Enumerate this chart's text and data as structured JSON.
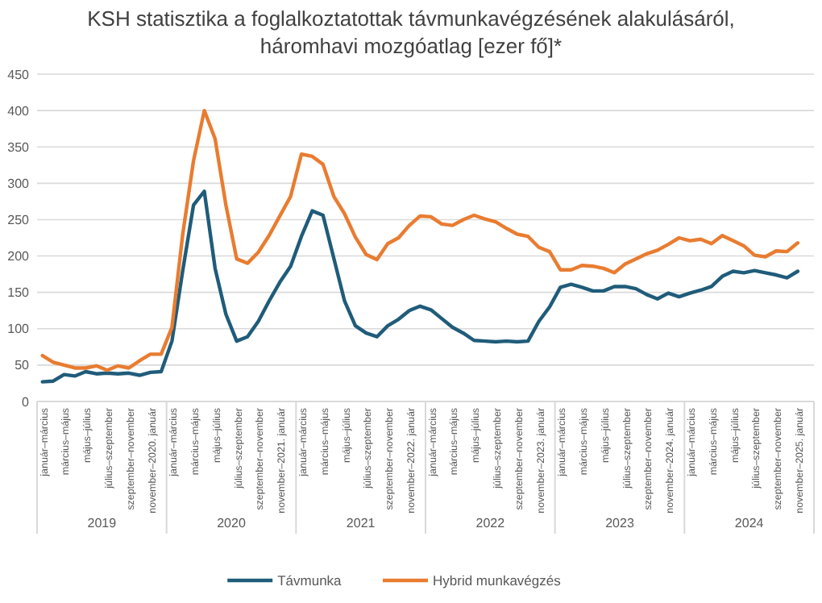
{
  "chart_data": {
    "type": "line",
    "title": "KSH statisztika a foglalkoztatottak távmunkavégzésének alakulásáról, háromhavi mozgóatlag [ezer fő]*",
    "categories": [
      "január–március",
      null,
      "március–május",
      null,
      "május–július",
      null,
      "július–szeptember",
      null,
      "szeptember–november",
      null,
      "november–2020. január",
      null,
      "január–március",
      null,
      "március–május",
      null,
      "május–július",
      null,
      "július–szeptember",
      null,
      "szeptember–november",
      null,
      "november–2021. január",
      null,
      "január–március",
      null,
      "március–május",
      null,
      "május–július",
      null,
      "július–szeptember",
      null,
      "szeptember–november",
      null,
      "november–2022. január",
      null,
      "január–március",
      null,
      "március–május",
      null,
      "május–július",
      null,
      "július–szeptember",
      null,
      "szeptember–november",
      null,
      "november–2023. január",
      null,
      "január–március",
      null,
      "március–május",
      null,
      "május–július",
      null,
      "július–szeptember",
      null,
      "szeptember–november",
      null,
      "november–2024. január",
      null,
      "január–március",
      null,
      "március–május",
      null,
      "május–július",
      null,
      "július–szeptember",
      null,
      "szeptember–november",
      null,
      "november–2025. január"
    ],
    "series": [
      {
        "name": "Távmunka",
        "color": "#1f5c7a",
        "values": [
          27,
          28,
          37,
          35,
          41,
          38,
          39,
          38,
          39,
          36,
          40,
          41,
          83,
          180,
          270,
          289,
          183,
          120,
          83,
          89,
          110,
          138,
          164,
          186,
          227,
          262,
          256,
          197,
          138,
          104,
          94,
          89,
          104,
          113,
          125,
          131,
          126,
          114,
          102,
          94,
          84,
          83,
          82,
          83,
          82,
          83,
          110,
          130,
          157,
          161,
          157,
          152,
          152,
          158,
          158,
          155,
          147,
          141,
          149,
          144,
          149,
          153,
          158,
          172,
          179,
          177,
          180,
          177,
          174,
          170,
          179
        ]
      },
      {
        "name": "Hybrid munkavégzés",
        "color": "#e97c30",
        "values": [
          63,
          54,
          50,
          46,
          46,
          49,
          43,
          49,
          46,
          56,
          65,
          65,
          102,
          230,
          331,
          400,
          361,
          270,
          196,
          190,
          205,
          228,
          255,
          282,
          340,
          337,
          326,
          282,
          258,
          226,
          202,
          195,
          217,
          225,
          242,
          255,
          254,
          244,
          242,
          250,
          256,
          251,
          247,
          238,
          230,
          227,
          212,
          206,
          181,
          181,
          187,
          186,
          183,
          177,
          189,
          196,
          203,
          208,
          216,
          225,
          221,
          223,
          217,
          228,
          221,
          214,
          201,
          199,
          207,
          206,
          218
        ]
      }
    ],
    "ylim": [
      0,
      450
    ],
    "yticks": [
      0,
      50,
      100,
      150,
      200,
      250,
      300,
      350,
      400,
      450
    ],
    "grid": "y",
    "legend": "bottom",
    "marker": "none",
    "line_style": "solid",
    "annotations": [
      "2019",
      "2020",
      "2021",
      "2022",
      "2023",
      "2024"
    ]
  }
}
